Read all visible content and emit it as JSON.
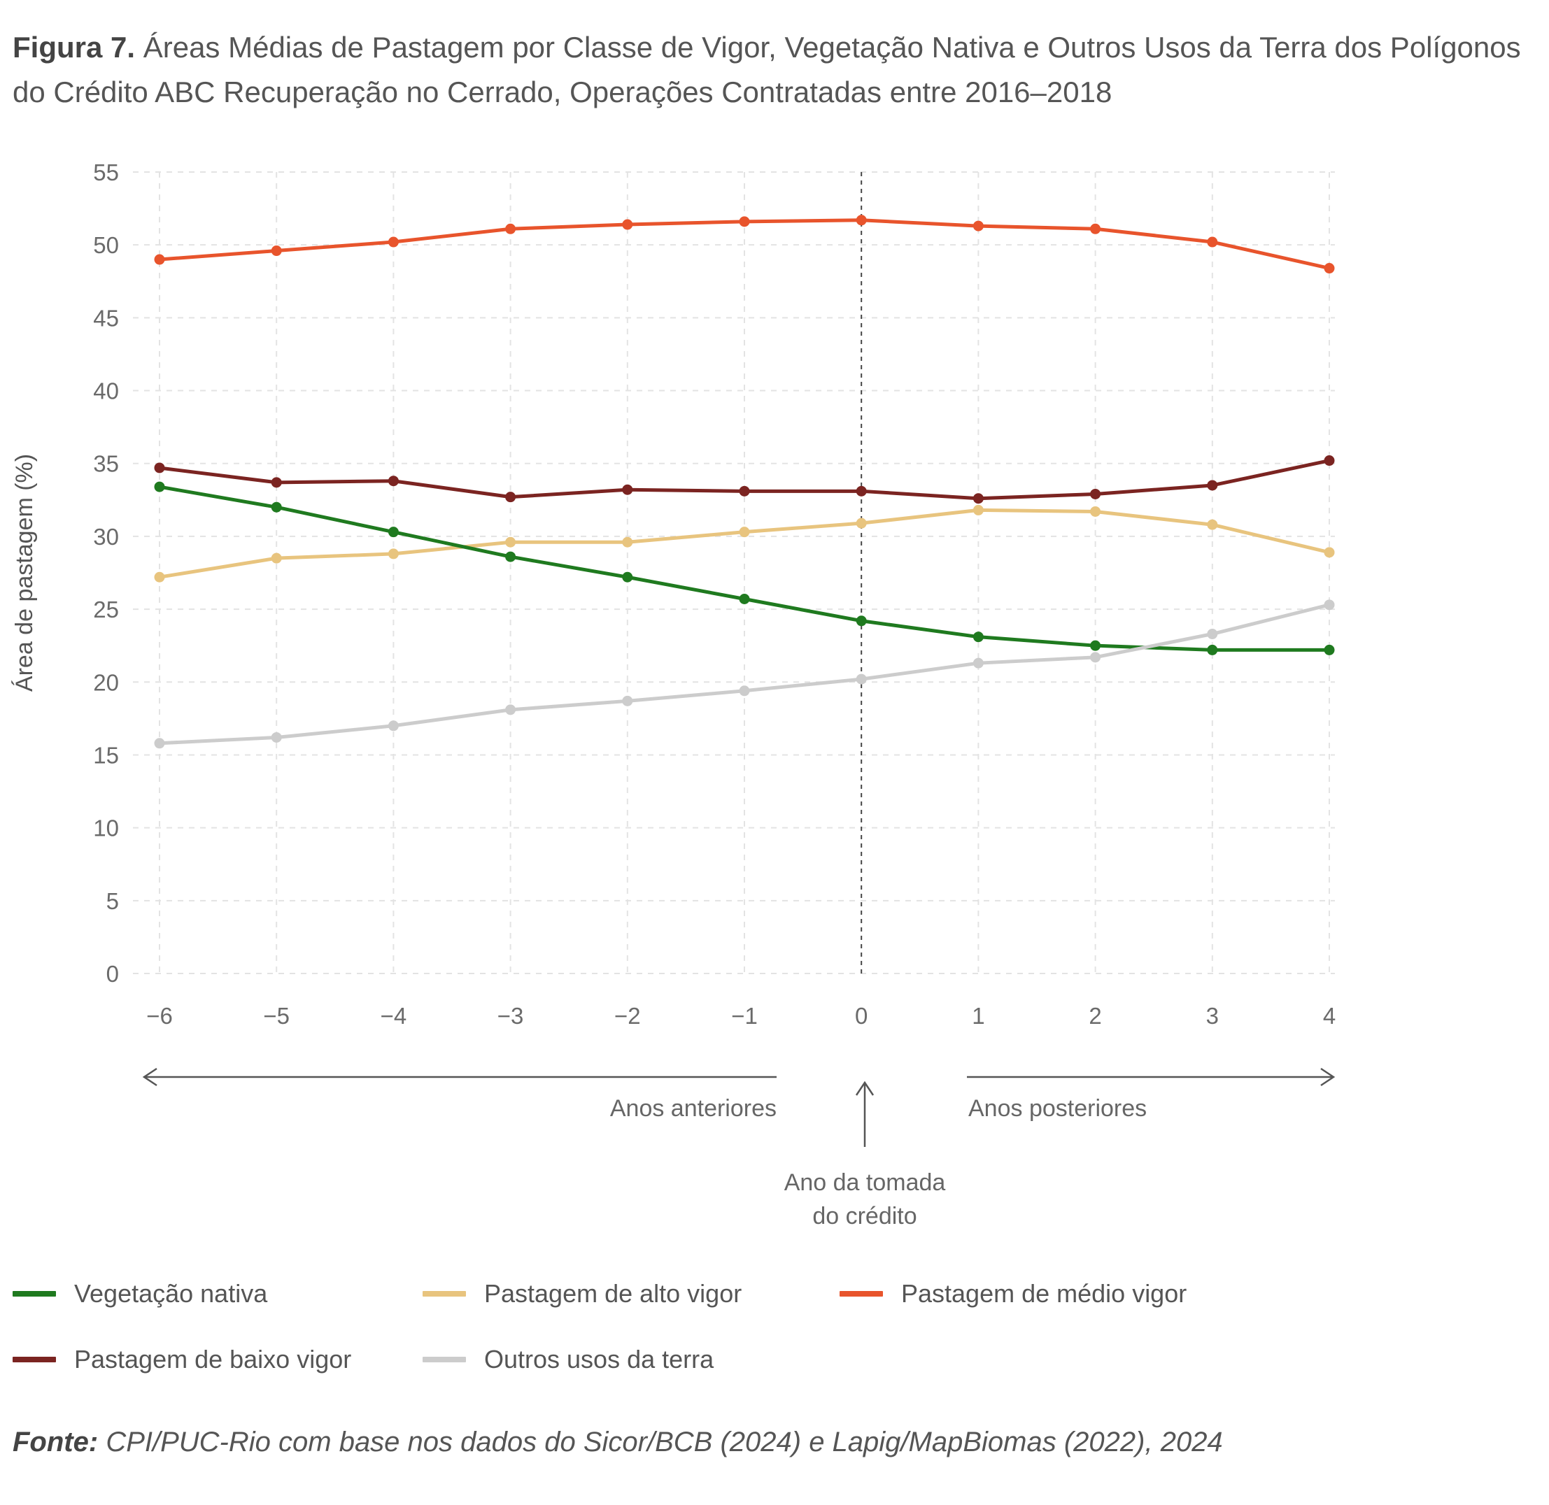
{
  "title": {
    "prefix": "Figura 7.",
    "text": "Áreas Médias de Pastagem por Classe de Vigor, Vegetação Nativa e Outros Usos da Terra dos Polígonos do Crédito ABC Recuperação no Cerrado, Operações Contratadas entre 2016–2018"
  },
  "chart_data": {
    "type": "line",
    "x": [
      -6,
      -5,
      -4,
      -3,
      -2,
      -1,
      0,
      1,
      2,
      3,
      4
    ],
    "x_tick_labels": [
      "−6",
      "−5",
      "−4",
      "−3",
      "−2",
      "−1",
      "0",
      "1",
      "2",
      "3",
      "4"
    ],
    "ylabel": "Área de pastagem (%)",
    "ylim": [
      0,
      55
    ],
    "y_ticks": [
      0,
      5,
      10,
      15,
      20,
      25,
      30,
      35,
      40,
      45,
      50,
      55
    ],
    "grid": true,
    "reference_line_x": 0,
    "series": [
      {
        "name": "Pastagem de médio vigor",
        "color": "#e8542c",
        "values": [
          49.0,
          49.6,
          50.2,
          51.1,
          51.4,
          51.6,
          51.7,
          51.3,
          51.1,
          50.2,
          48.4
        ]
      },
      {
        "name": "Pastagem de baixo vigor",
        "color": "#7b2421",
        "values": [
          34.7,
          33.7,
          33.8,
          32.7,
          33.2,
          33.1,
          33.1,
          32.6,
          32.9,
          33.5,
          35.2
        ]
      },
      {
        "name": "Pastagem de alto vigor",
        "color": "#e8c47e",
        "values": [
          27.2,
          28.5,
          28.8,
          29.6,
          29.6,
          30.3,
          30.9,
          31.8,
          31.7,
          30.8,
          28.9
        ]
      },
      {
        "name": "Vegetação nativa",
        "color": "#1f7a1f",
        "values": [
          33.4,
          32.0,
          30.3,
          28.6,
          27.2,
          25.7,
          24.2,
          23.1,
          22.5,
          22.2,
          22.2
        ]
      },
      {
        "name": "Outros usos da terra",
        "color": "#cccccc",
        "values": [
          15.8,
          16.2,
          17.0,
          18.1,
          18.7,
          19.4,
          20.2,
          21.3,
          21.7,
          23.3,
          25.3
        ]
      }
    ],
    "annotations": {
      "before": "Anos anteriores",
      "after": "Anos posteriores",
      "credit_year_line1": "Ano da tomada",
      "credit_year_line2": "do crédito"
    },
    "legend": [
      {
        "name": "Vegetação nativa",
        "color": "#1f7a1f"
      },
      {
        "name": "Pastagem de alto vigor",
        "color": "#e8c47e"
      },
      {
        "name": "Pastagem de médio vigor",
        "color": "#e8542c"
      },
      {
        "name": "Pastagem de baixo vigor",
        "color": "#7b2421"
      },
      {
        "name": "Outros usos da terra",
        "color": "#cccccc"
      }
    ]
  },
  "source": {
    "label": "Fonte:",
    "text": "CPI/PUC-Rio com base nos dados do Sicor/BCB (2024) e Lapig/MapBiomas (2022), 2024"
  }
}
